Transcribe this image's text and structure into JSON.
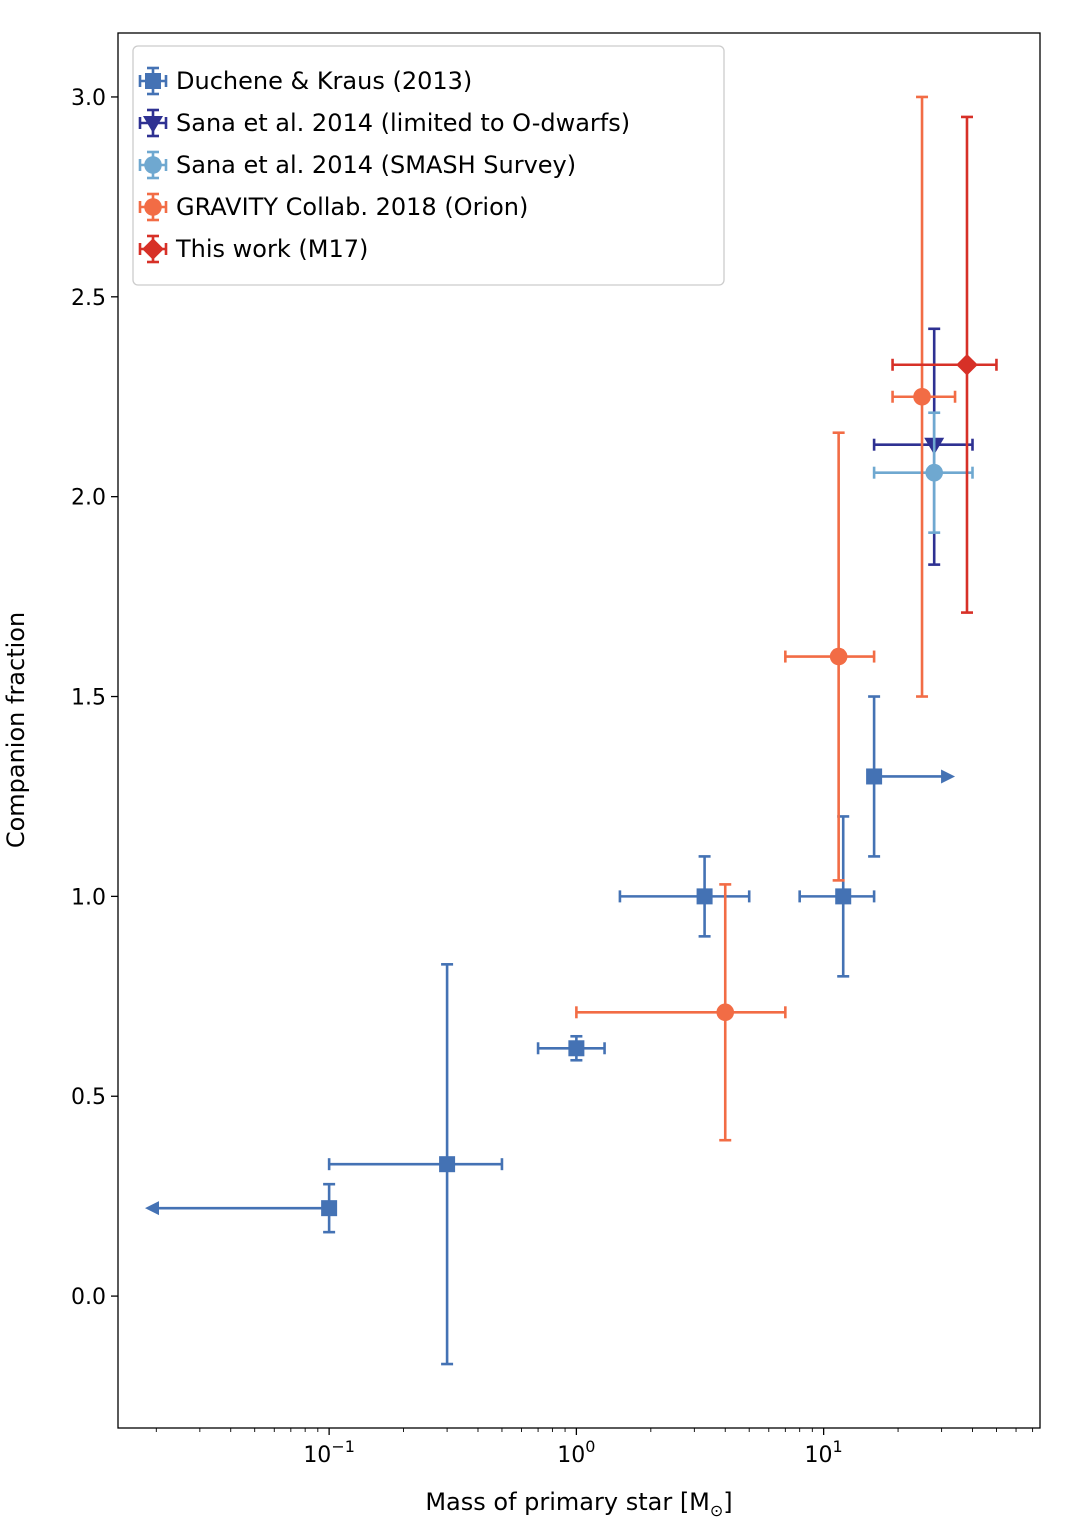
{
  "chart_data": {
    "type": "scatter",
    "title": "",
    "xlabel": "Mass of primary star [M",
    "xlabel_sub": "⊙",
    "xlabel_close": "]",
    "ylabel": "Companion fraction",
    "xscale": "log",
    "xlim": [
      0.014,
      75
    ],
    "ylim": [
      -0.33,
      3.16
    ],
    "grid": false,
    "legend_position": "top-left",
    "x_ticks": [
      {
        "value": 0.1,
        "base": "10",
        "exp": "−1"
      },
      {
        "value": 1,
        "base": "10",
        "exp": "0"
      },
      {
        "value": 10,
        "base": "10",
        "exp": "1"
      }
    ],
    "y_ticks": [
      {
        "value": 0.0,
        "label": "0.0"
      },
      {
        "value": 0.5,
        "label": "0.5"
      },
      {
        "value": 1.0,
        "label": "1.0"
      },
      {
        "value": 1.5,
        "label": "1.5"
      },
      {
        "value": 2.0,
        "label": "2.0"
      },
      {
        "value": 2.5,
        "label": "2.5"
      },
      {
        "value": 3.0,
        "label": "3.0"
      }
    ],
    "series": [
      {
        "name": "Duchene & Kraus (2013)",
        "marker": "square",
        "color": "#4472b4",
        "points": [
          {
            "x": 0.1,
            "y": 0.22,
            "xerr": [
              0.1,
              0.1
            ],
            "yerr": [
              0.06,
              0.06
            ],
            "xarrow": "left",
            "xarrow_to": 0.018
          },
          {
            "x": 0.3,
            "y": 0.33,
            "xerr": [
              0.1,
              0.5
            ],
            "yerr": [
              0.5,
              0.5
            ]
          },
          {
            "x": 1.0,
            "y": 0.62,
            "xerr": [
              0.7,
              1.3
            ],
            "yerr": [
              0.03,
              0.03
            ]
          },
          {
            "x": 3.3,
            "y": 1.0,
            "xerr": [
              1.5,
              5.0
            ],
            "yerr": [
              0.1,
              0.1
            ]
          },
          {
            "x": 12,
            "y": 1.0,
            "xerr": [
              8,
              16
            ],
            "yerr": [
              0.2,
              0.2
            ]
          },
          {
            "x": 16,
            "y": 1.3,
            "xerr": [
              16,
              16
            ],
            "yerr": [
              0.2,
              0.2
            ],
            "xarrow": "right",
            "xarrow_to": 34
          }
        ]
      },
      {
        "name": "Sana et al. 2014 (limited to O-dwarfs)",
        "marker": "triangle-down",
        "color": "#2e3192",
        "points": [
          {
            "x": 28,
            "y": 2.13,
            "xerr": [
              16,
              40
            ],
            "yerr": [
              0.3,
              0.29
            ]
          }
        ]
      },
      {
        "name": "Sana et al. 2014 (SMASH Survey)",
        "marker": "circle",
        "color": "#6fa8d0",
        "points": [
          {
            "x": 28,
            "y": 2.06,
            "xerr": [
              16,
              40
            ],
            "yerr": [
              0.15,
              0.15
            ]
          }
        ]
      },
      {
        "name": "GRAVITY Collab. 2018 (Orion)",
        "marker": "circle",
        "color": "#f26c45",
        "points": [
          {
            "x": 4,
            "y": 0.71,
            "xerr": [
              1,
              7
            ],
            "yerr": [
              0.32,
              0.32
            ]
          },
          {
            "x": 11.5,
            "y": 1.6,
            "xerr": [
              7,
              16
            ],
            "yerr": [
              0.56,
              0.56
            ]
          },
          {
            "x": 25,
            "y": 2.25,
            "xerr": [
              19,
              34
            ],
            "yerr": [
              0.75,
              0.75
            ]
          }
        ]
      },
      {
        "name": "This work (M17)",
        "marker": "diamond",
        "color": "#d73027",
        "points": [
          {
            "x": 38,
            "y": 2.33,
            "xerr": [
              19,
              50
            ],
            "yerr": [
              0.62,
              0.62
            ]
          }
        ]
      }
    ]
  }
}
